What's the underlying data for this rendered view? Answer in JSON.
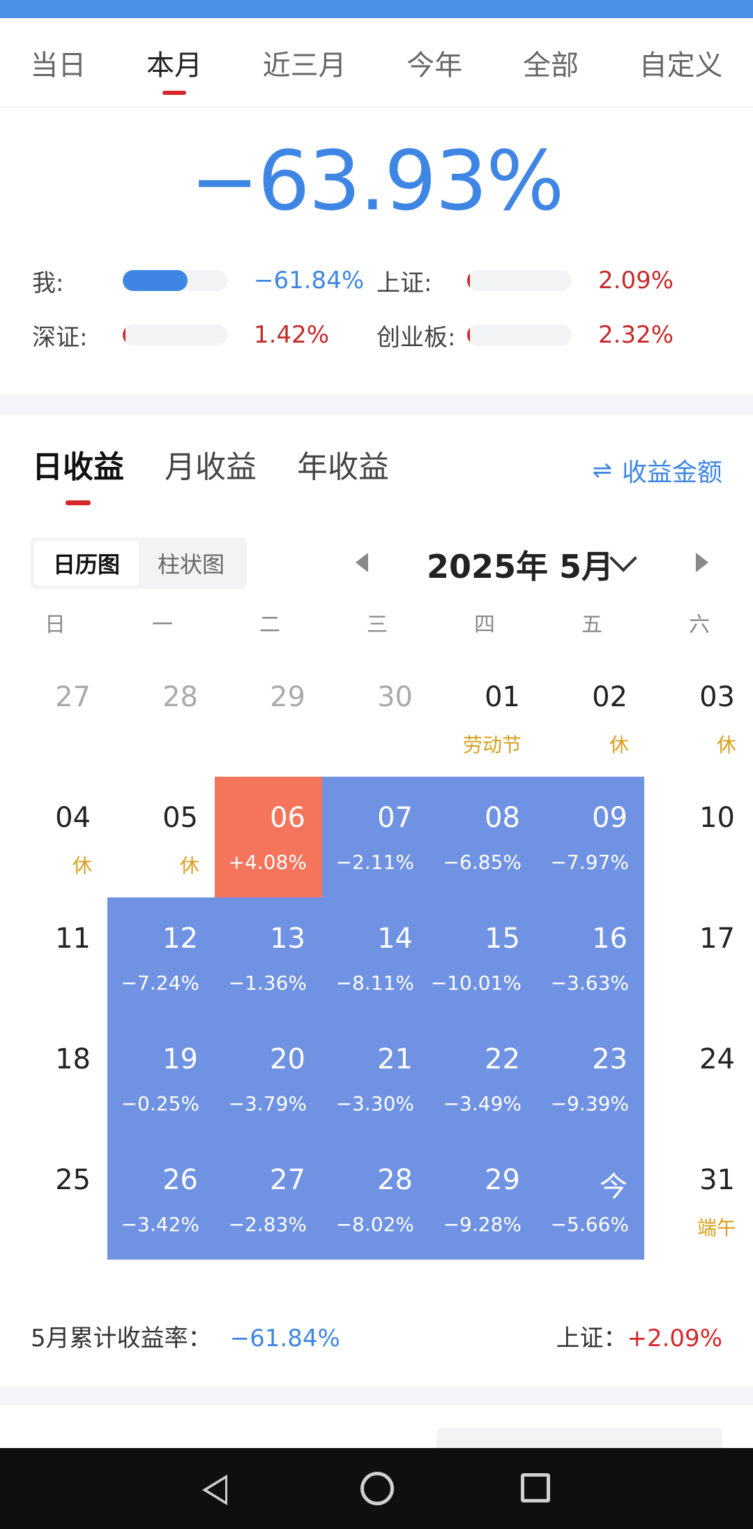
{
  "period_tabs": [
    {
      "label": "当日",
      "active": false
    },
    {
      "label": "本月",
      "active": true
    },
    {
      "label": "近三月",
      "active": false
    },
    {
      "label": "今年",
      "active": false
    },
    {
      "label": "全部",
      "active": false
    },
    {
      "label": "自定义",
      "active": false
    }
  ],
  "summary": {
    "total_return": "−63.93%",
    "comparisons": [
      {
        "label": "我:",
        "value": "−61.84%",
        "bar_fraction": 0.62
      },
      {
        "label": "上证:",
        "value": "2.09%",
        "bar_fraction": 0.02
      },
      {
        "label": "深证:",
        "value": "1.42%",
        "bar_fraction": 0.01
      },
      {
        "label": "创业板:",
        "value": "2.32%",
        "bar_fraction": 0.02
      }
    ]
  },
  "return_tabs": [
    {
      "label": "日收益",
      "active": true
    },
    {
      "label": "月收益",
      "active": false
    },
    {
      "label": "年收益",
      "active": false
    }
  ],
  "return_switch": {
    "icon": "swap-arrows-icon",
    "label": "收益金额"
  },
  "view_toggle": {
    "calendar": "日历图",
    "bar": "柱状图",
    "active": "日历图"
  },
  "month_label": "2025年 5月",
  "weekdays": [
    "日",
    "一",
    "二",
    "三",
    "四",
    "五",
    "六"
  ],
  "calendar": [
    [
      {
        "d": "27",
        "type": "prev"
      },
      {
        "d": "28",
        "type": "prev"
      },
      {
        "d": "29",
        "type": "prev"
      },
      {
        "d": "30",
        "type": "prev"
      },
      {
        "d": "01",
        "s": "劳动节",
        "type": "hol"
      },
      {
        "d": "02",
        "s": "休",
        "type": "hol"
      },
      {
        "d": "03",
        "s": "休",
        "type": "hol"
      }
    ],
    [
      {
        "d": "04",
        "s": "休",
        "type": "hol"
      },
      {
        "d": "05",
        "s": "休",
        "type": "hol"
      },
      {
        "d": "06",
        "s": "+4.08%",
        "type": "pos"
      },
      {
        "d": "07",
        "s": "−2.11%",
        "type": "neg"
      },
      {
        "d": "08",
        "s": "−6.85%",
        "type": "neg"
      },
      {
        "d": "09",
        "s": "−7.97%",
        "type": "neg"
      },
      {
        "d": "10",
        "type": "plain"
      }
    ],
    [
      {
        "d": "11",
        "type": "plain"
      },
      {
        "d": "12",
        "s": "−7.24%",
        "type": "neg"
      },
      {
        "d": "13",
        "s": "−1.36%",
        "type": "neg"
      },
      {
        "d": "14",
        "s": "−8.11%",
        "type": "neg"
      },
      {
        "d": "15",
        "s": "−10.01%",
        "type": "neg"
      },
      {
        "d": "16",
        "s": "−3.63%",
        "type": "neg"
      },
      {
        "d": "17",
        "type": "plain"
      }
    ],
    [
      {
        "d": "18",
        "type": "plain"
      },
      {
        "d": "19",
        "s": "−0.25%",
        "type": "neg"
      },
      {
        "d": "20",
        "s": "−3.79%",
        "type": "neg"
      },
      {
        "d": "21",
        "s": "−3.30%",
        "type": "neg"
      },
      {
        "d": "22",
        "s": "−3.49%",
        "type": "neg"
      },
      {
        "d": "23",
        "s": "−9.39%",
        "type": "neg"
      },
      {
        "d": "24",
        "type": "plain"
      }
    ],
    [
      {
        "d": "25",
        "type": "plain"
      },
      {
        "d": "26",
        "s": "−3.42%",
        "type": "neg"
      },
      {
        "d": "27",
        "s": "−2.83%",
        "type": "neg"
      },
      {
        "d": "28",
        "s": "−8.02%",
        "type": "neg"
      },
      {
        "d": "29",
        "s": "−9.28%",
        "type": "neg"
      },
      {
        "d": "今",
        "s": "−5.66%",
        "type": "neg"
      },
      {
        "d": "31",
        "s": "端午",
        "type": "hol"
      }
    ]
  ],
  "cumulative": {
    "label": "5月累计收益率：",
    "value": "−61.84%",
    "sh_label": "上证：",
    "sh_value": "+2.09%"
  },
  "colors": {
    "accent": "#3f86e4",
    "negative_cell": "#6f92e3",
    "positive_cell": "#f5745c",
    "holiday": "#d8a01c",
    "up_red": "#d6282a"
  }
}
